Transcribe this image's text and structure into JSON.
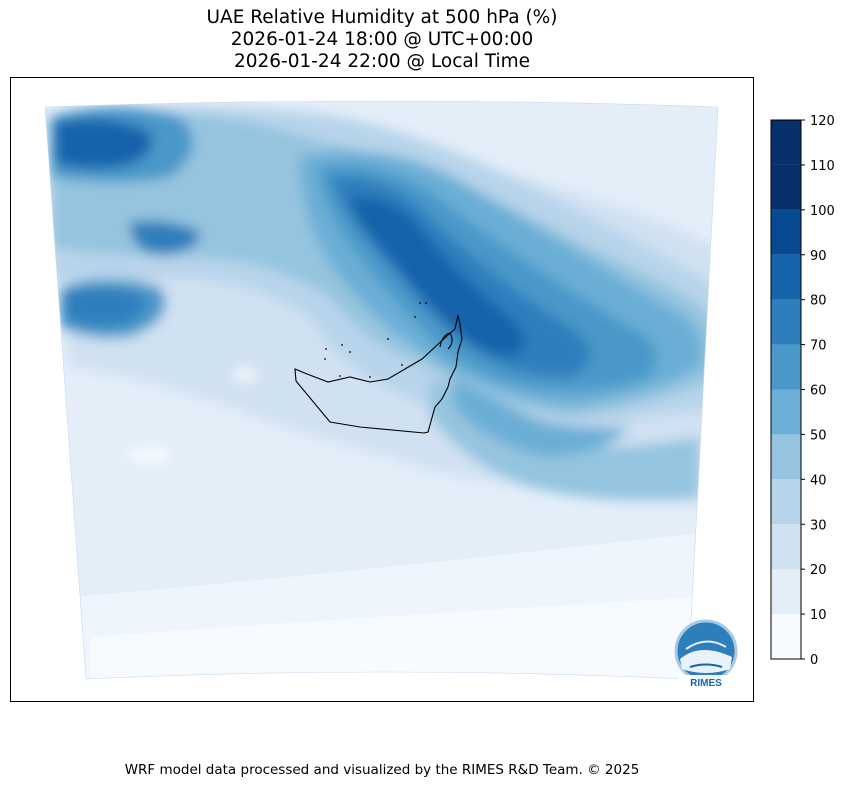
{
  "title": {
    "line1": "UAE Relative Humidity at 500 hPa (%)",
    "line2": "2026-01-24 18:00 @ UTC+00:00",
    "line3": "2026-01-24 22:00 @ Local Time"
  },
  "colorbar": {
    "min": 0,
    "max": 120,
    "ticks": [
      "120",
      "110",
      "100",
      "90",
      "80",
      "70",
      "60",
      "50",
      "40",
      "30",
      "20",
      "10",
      "0"
    ],
    "colors": [
      "#f7fbff",
      "#e3eef9",
      "#d0e1f2",
      "#b7d4ea",
      "#94c4df",
      "#6baed6",
      "#4a98c9",
      "#2e7ebc",
      "#1764ab",
      "#084a91",
      "#08306b",
      "#08306b"
    ]
  },
  "logo": {
    "text": "RIMES"
  },
  "footer": {
    "text": "WRF model data processed and visualized by the RIMES R&D Team. © 2025"
  }
}
